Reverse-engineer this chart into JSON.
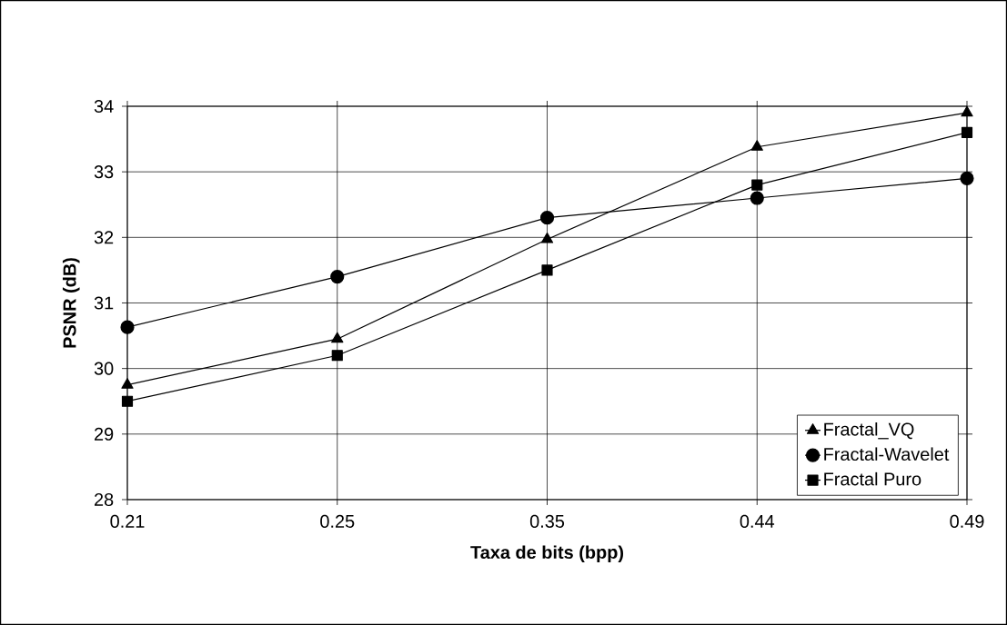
{
  "chart_data": {
    "type": "line",
    "xlabel": "Taxa de bits (bpp)",
    "ylabel": "PSNR (dB)",
    "categories": [
      "0.21",
      "0.25",
      "0.35",
      "0.44",
      "0.49"
    ],
    "series": [
      {
        "name": "Fractal_VQ",
        "color": "#000000",
        "marker": "triangle",
        "values": [
          29.75,
          30.45,
          31.97,
          33.38,
          33.9
        ]
      },
      {
        "name": "Fractal-Wavelet",
        "color": "#000000",
        "marker": "circle",
        "values": [
          30.63,
          31.4,
          32.3,
          32.6,
          32.9
        ]
      },
      {
        "name": "Fractal Puro",
        "color": "#000000",
        "marker": "square",
        "values": [
          29.5,
          30.2,
          31.5,
          32.8,
          33.6
        ]
      }
    ],
    "ylim": [
      28,
      34
    ],
    "yticks": [
      28,
      29,
      30,
      31,
      32,
      33,
      34
    ],
    "grid": true,
    "legend": "bottom right",
    "line_style": "solid"
  }
}
